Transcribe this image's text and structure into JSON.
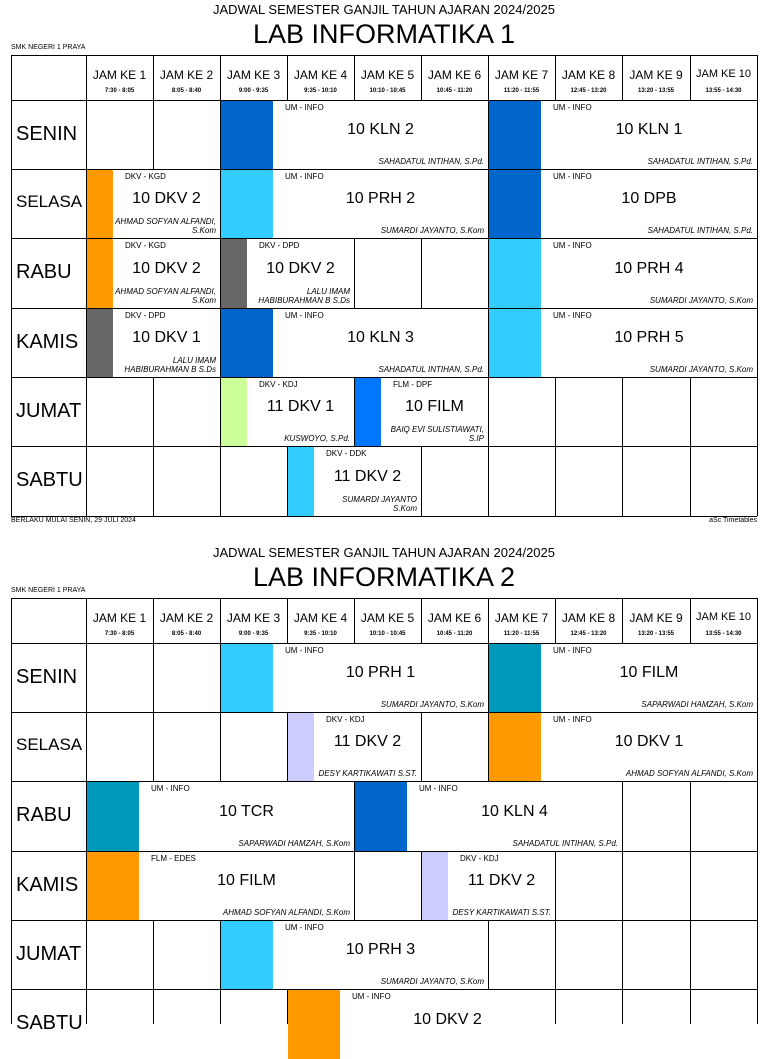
{
  "header_time_slots": [
    {
      "label": "JAM KE 1",
      "time": "7:30 - 8:05"
    },
    {
      "label": "JAM KE 2",
      "time": "8:05 - 8:40"
    },
    {
      "label": "JAM KE 3",
      "time": "9:00 - 9:35"
    },
    {
      "label": "JAM KE 4",
      "time": "9:35 - 10:10"
    },
    {
      "label": "JAM KE 5",
      "time": "10:10 - 10:45"
    },
    {
      "label": "JAM KE 6",
      "time": "10:45 - 11:20"
    },
    {
      "label": "JAM KE 7",
      "time": "11:20 - 11:55"
    },
    {
      "label": "JAM KE 8",
      "time": "12:45 - 13:20"
    },
    {
      "label": "JAM KE 9",
      "time": "13:20 - 13:55"
    },
    {
      "label": "JAM KE 10",
      "time": "13:55 - 14:30"
    }
  ],
  "tables": [
    {
      "subtitle": "JADWAL SEMESTER GANJIL TAHUN AJARAN 2024/2025",
      "title": "LAB INFORMATIKA 1",
      "school": "SMK NEGERI 1 PRAYA",
      "footer_left": "BERLAKU MULAI SENIN, 29 JULI 2024",
      "footer_right": "aSc Timetables",
      "days": [
        "SENIN",
        "SELASA",
        "RABU",
        "KAMIS",
        "JUMAT",
        "SABTU"
      ],
      "lessons": [
        {
          "day": 0,
          "start": 2,
          "span": 4,
          "color": "#0066cc",
          "code": "UM - INFO",
          "cls": "10 KLN 2",
          "teacher": "SAHADATUL INTIHAN, S.Pd."
        },
        {
          "day": 0,
          "start": 6,
          "span": 4,
          "color": "#0066cc",
          "code": "UM - INFO",
          "cls": "10 KLN 1",
          "teacher": "SAHADATUL INTIHAN, S.Pd."
        },
        {
          "day": 1,
          "start": 0,
          "span": 2,
          "color": "#ff9900",
          "code": "DKV - KGD",
          "cls": "10 DKV 2",
          "teacher": "AHMAD SOFYAN ALFANDI, S.Kom"
        },
        {
          "day": 1,
          "start": 2,
          "span": 4,
          "color": "#33ccff",
          "code": "UM - INFO",
          "cls": "10 PRH 2",
          "teacher": "SUMARDI JAYANTO, S.Kom"
        },
        {
          "day": 1,
          "start": 6,
          "span": 4,
          "color": "#0066cc",
          "code": "UM - INFO",
          "cls": "10 DPB",
          "teacher": "SAHADATUL INTIHAN, S.Pd."
        },
        {
          "day": 2,
          "start": 0,
          "span": 2,
          "color": "#ff9900",
          "code": "DKV - KGD",
          "cls": "10 DKV 2",
          "teacher": "AHMAD SOFYAN ALFANDI, S.Kom"
        },
        {
          "day": 2,
          "start": 2,
          "span": 2,
          "color": "#666666",
          "code": "DKV - DPD",
          "cls": "10 DKV 2",
          "teacher": "LALU IMAM HABIBURAHMAN B S.Ds"
        },
        {
          "day": 2,
          "start": 6,
          "span": 4,
          "color": "#33ccff",
          "code": "UM - INFO",
          "cls": "10 PRH 4",
          "teacher": "SUMARDI JAYANTO, S.Kom"
        },
        {
          "day": 3,
          "start": 0,
          "span": 2,
          "color": "#666666",
          "code": "DKV - DPD",
          "cls": "10 DKV 1",
          "teacher": "LALU IMAM HABIBURAHMAN B S.Ds"
        },
        {
          "day": 3,
          "start": 2,
          "span": 4,
          "color": "#0066cc",
          "code": "UM - INFO",
          "cls": "10 KLN 3",
          "teacher": "SAHADATUL INTIHAN, S.Pd."
        },
        {
          "day": 3,
          "start": 6,
          "span": 4,
          "color": "#33ccff",
          "code": "UM - INFO",
          "cls": "10 PRH 5",
          "teacher": "SUMARDI JAYANTO, S.Kom"
        },
        {
          "day": 4,
          "start": 2,
          "span": 2,
          "color": "#ccff99",
          "code": "DKV - KDJ",
          "cls": "11 DKV 1",
          "teacher": "KUSWOYO, S.Pd."
        },
        {
          "day": 4,
          "start": 4,
          "span": 2,
          "color": "#0077ff",
          "code": "FLM - DPF",
          "cls": "10 FILM",
          "teacher": "BAIQ EVI SULISTIAWATI, S.IP"
        },
        {
          "day": 5,
          "start": 3,
          "span": 2,
          "color": "#33ccff",
          "code": "DKV - DDK",
          "cls": "11 DKV 2",
          "teacher": "SUMARDI JAYANTO S.Kom"
        }
      ]
    },
    {
      "subtitle": "JADWAL SEMESTER GANJIL TAHUN AJARAN 2024/2025",
      "title": "LAB INFORMATIKA 2",
      "school": "SMK NEGERI 1 PRAYA",
      "footer_left": "",
      "footer_right": "",
      "days": [
        "SENIN",
        "SELASA",
        "RABU",
        "KAMIS",
        "JUMAT",
        "SABTU"
      ],
      "lessons": [
        {
          "day": 0,
          "start": 2,
          "span": 4,
          "color": "#33ccff",
          "code": "UM - INFO",
          "cls": "10 PRH 1",
          "teacher": "SUMARDI JAYANTO, S.Kom"
        },
        {
          "day": 0,
          "start": 6,
          "span": 4,
          "color": "#0099bb",
          "code": "UM - INFO",
          "cls": "10 FILM",
          "teacher": "SAPARWADI HAMZAH, S.Kom"
        },
        {
          "day": 1,
          "start": 3,
          "span": 2,
          "color": "#ccccff",
          "code": "DKV - KDJ",
          "cls": "11 DKV 2",
          "teacher": "DESY KARTIKAWATI S.ST."
        },
        {
          "day": 1,
          "start": 6,
          "span": 4,
          "color": "#ff9900",
          "code": "UM - INFO",
          "cls": "10 DKV 1",
          "teacher": "AHMAD SOFYAN ALFANDI, S.Kom"
        },
        {
          "day": 2,
          "start": 0,
          "span": 4,
          "color": "#0099bb",
          "code": "UM - INFO",
          "cls": "10 TCR",
          "teacher": "SAPARWADI HAMZAH, S.Kom"
        },
        {
          "day": 2,
          "start": 4,
          "span": 4,
          "color": "#0066cc",
          "code": "UM - INFO",
          "cls": "10 KLN 4",
          "teacher": "SAHADATUL INTIHAN, S.Pd."
        },
        {
          "day": 3,
          "start": 0,
          "span": 4,
          "color": "#ff9900",
          "code": "FLM - EDES",
          "cls": "10 FILM",
          "teacher": "AHMAD SOFYAN ALFANDI, S.Kom"
        },
        {
          "day": 3,
          "start": 5,
          "span": 2,
          "color": "#ccccff",
          "code": "DKV - KDJ",
          "cls": "11 DKV 2",
          "teacher": "DESY KARTIKAWATI S.ST."
        },
        {
          "day": 4,
          "start": 2,
          "span": 4,
          "color": "#33ccff",
          "code": "UM - INFO",
          "cls": "10 PRH 3",
          "teacher": "SUMARDI JAYANTO, S.Kom"
        },
        {
          "day": 5,
          "start": 3,
          "span": 4,
          "color": "#ff9900",
          "code": "UM - INFO",
          "cls": "10 DKV 2",
          "teacher": ""
        }
      ]
    }
  ]
}
